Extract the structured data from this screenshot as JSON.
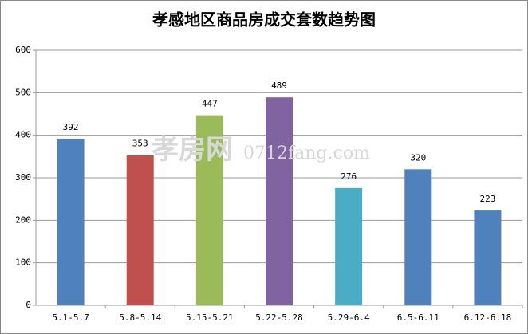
{
  "chart_data": {
    "type": "bar",
    "title": "孝感地区商品房成交套数趋势图",
    "categories": [
      "5.1-5.7",
      "5.8-5.14",
      "5.15-5.21",
      "5.22-5.28",
      "5.29-6.4",
      "6.5-6.11",
      "6.12-6.18"
    ],
    "values": [
      392,
      353,
      447,
      489,
      276,
      320,
      223
    ],
    "colors": [
      "#4f81bd",
      "#c0504d",
      "#9bbb59",
      "#8064a2",
      "#4bacc6",
      "#4f81bd",
      "#4f81bd"
    ],
    "ylim": [
      0,
      600
    ],
    "yticks": [
      0,
      100,
      200,
      300,
      400,
      500,
      600
    ],
    "grid": true,
    "watermark": {
      "brand": "孝房网",
      "site": "0712fang.com"
    }
  }
}
